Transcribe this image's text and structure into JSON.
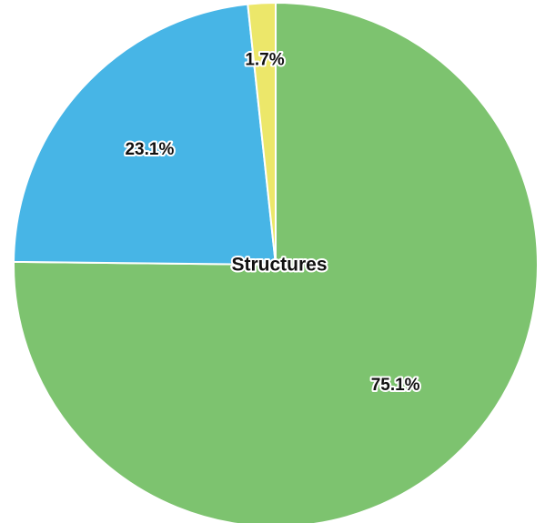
{
  "chart_data": {
    "type": "pie",
    "title": "Structures",
    "values": [
      75.1,
      23.1,
      1.7
    ],
    "value_labels": [
      "75.1%",
      "23.1%",
      "1.7%"
    ],
    "colors": [
      "#7dc36f",
      "#47b5e6",
      "#ece76a"
    ]
  }
}
